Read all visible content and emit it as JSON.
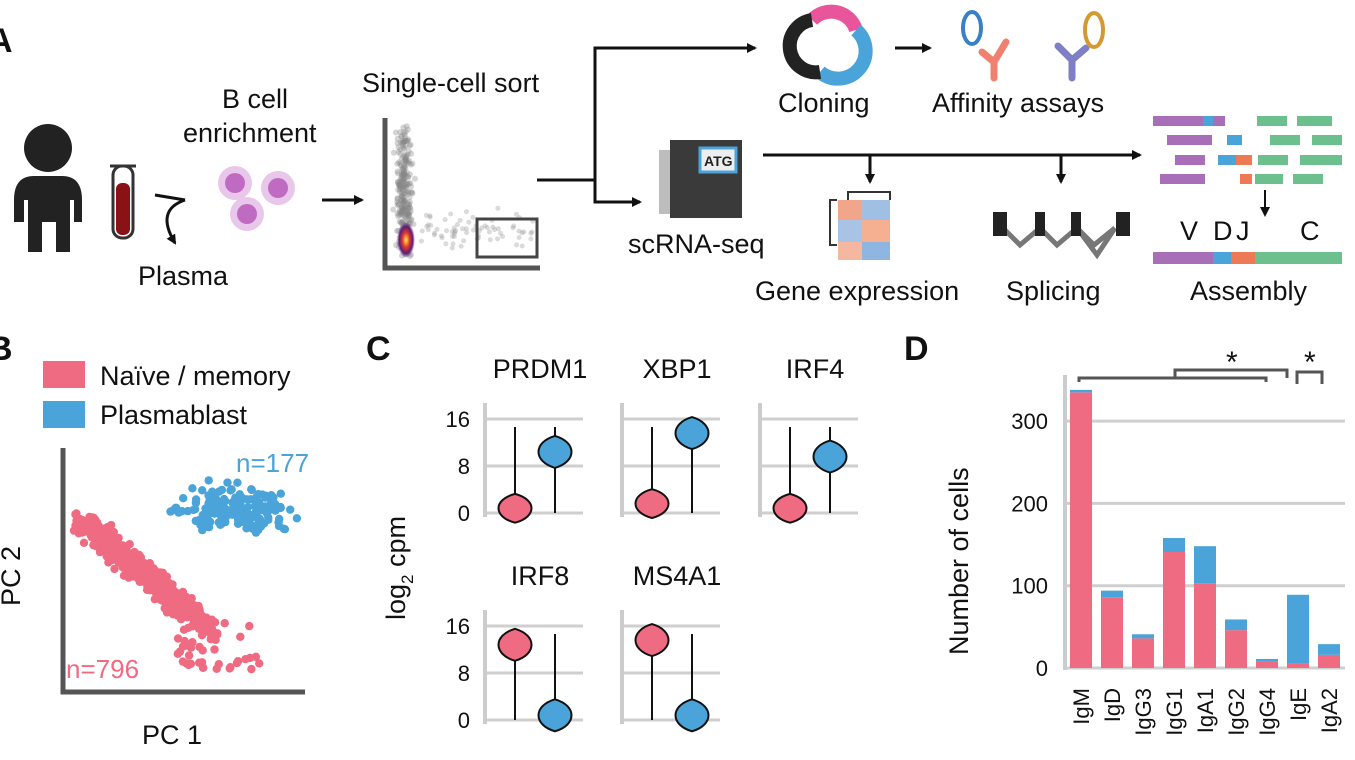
{
  "colors": {
    "naive": "#ee6b82",
    "plasma": "#4aa3d9",
    "purple": "#a86fb8",
    "green": "#6cc08e",
    "orange": "#ee7a55"
  },
  "panelA": {
    "tag": "A",
    "enrichment": [
      "B cell",
      "enrichment"
    ],
    "plasma": "Plasma",
    "sort": "Single-cell sort",
    "cloning": "Cloning",
    "affinity": "Affinity assays",
    "scrna": "scRNA-seq",
    "atg": "ATG",
    "gene_expression": "Gene expression",
    "splicing": "Splicing",
    "assembly": "Assembly",
    "segments": [
      "V",
      "D",
      "J",
      "C"
    ]
  },
  "panelB": {
    "tag": "B",
    "legend": [
      "Naïve / memory",
      "Plasmablast"
    ],
    "n_plasma": "n=177",
    "n_naive": "n=796",
    "xlabel": "PC 1",
    "ylabel": "PC 2"
  },
  "panelC": {
    "tag": "C",
    "genes": [
      "PRDM1",
      "XBP1",
      "IRF4",
      "IRF8",
      "MS4A1"
    ],
    "ylabel_main": "log",
    "ylabel_sub": "2",
    "ylabel_rest": " cpm",
    "yticks": [
      "16",
      "8",
      "0"
    ]
  },
  "panelD": {
    "tag": "D",
    "stars": [
      "*",
      "*"
    ]
  },
  "chart_data": {
    "type": "bar",
    "stacked": true,
    "categories": [
      "IgM",
      "IgD",
      "IgG3",
      "IgG1",
      "IgA1",
      "IgG2",
      "IgG4",
      "IgE",
      "IgA2"
    ],
    "series": [
      {
        "name": "Naïve / memory",
        "values": [
          335,
          86,
          36,
          141,
          103,
          46,
          8,
          5,
          16
        ]
      },
      {
        "name": "Plasmablast",
        "values": [
          3,
          8,
          5,
          17,
          45,
          13,
          3,
          84,
          13
        ]
      }
    ],
    "ylabel": "Number of cells",
    "ylim": [
      0,
      350
    ],
    "yticks": [
      0,
      100,
      200,
      300
    ],
    "grid": true
  }
}
